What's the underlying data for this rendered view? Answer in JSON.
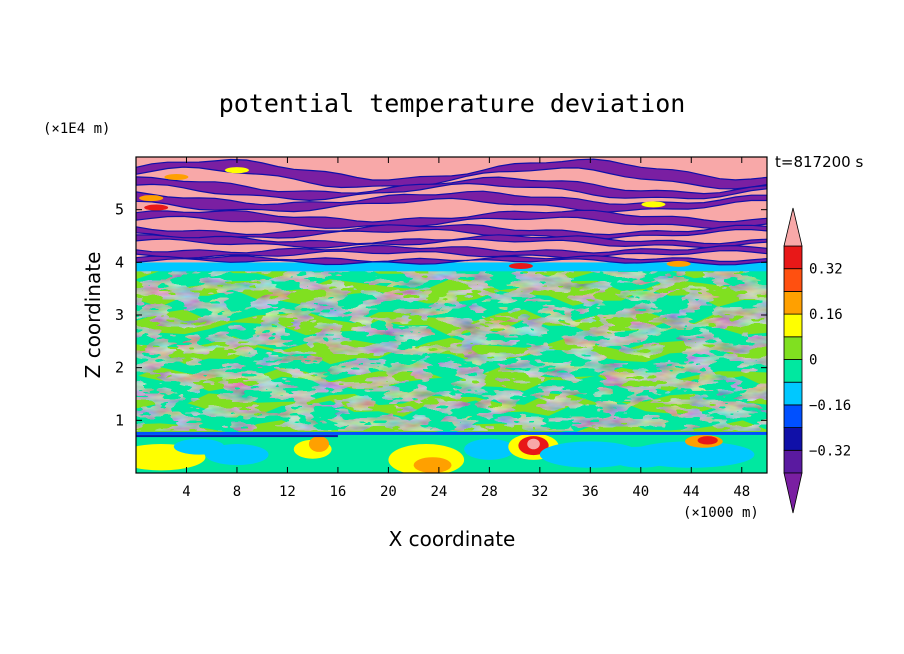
{
  "chart_data": {
    "type": "heatmap",
    "title": "potential temperature deviation",
    "xlabel": "X coordinate",
    "ylabel": "Z coordinate",
    "x_unit": "(×1000 m)",
    "y_unit": "(×1E4 m)",
    "time_label": "t=817200 s",
    "xlim": [
      0,
      50
    ],
    "ylim": [
      0,
      6
    ],
    "x_ticks": [
      4,
      8,
      12,
      16,
      20,
      24,
      28,
      32,
      36,
      40,
      44,
      48
    ],
    "y_ticks": [
      1,
      2,
      3,
      4,
      5
    ],
    "colorbar": {
      "levels": [
        -0.4,
        -0.32,
        -0.24,
        -0.16,
        -0.08,
        0,
        0.08,
        0.16,
        0.24,
        0.32,
        0.4
      ],
      "tick_values": [
        0.32,
        0.16,
        0,
        -0.16,
        -0.32
      ],
      "tick_labels": [
        "0.32",
        "0.16",
        "0",
        "−0.16",
        "−0.32"
      ],
      "extend": "both",
      "colors": [
        "#7a1fa2",
        "#5a1aa0",
        "#1010a8",
        "#0050ff",
        "#00c8ff",
        "#00e8a0",
        "#80e020",
        "#ffff00",
        "#ffa000",
        "#ff5010",
        "#e81818",
        "#f8a8a8"
      ]
    },
    "regions": [
      {
        "z_range": [
          4.0,
          6.0
        ],
        "description": "alternating strong positive (pink) and strong negative (purple) layers"
      },
      {
        "z_range": [
          0.8,
          4.0
        ],
        "description": "near-zero values (green)"
      },
      {
        "z_range": [
          0.0,
          0.8
        ],
        "description": "mixed small negative (cyan) and positive (yellow/orange) patches"
      }
    ]
  }
}
